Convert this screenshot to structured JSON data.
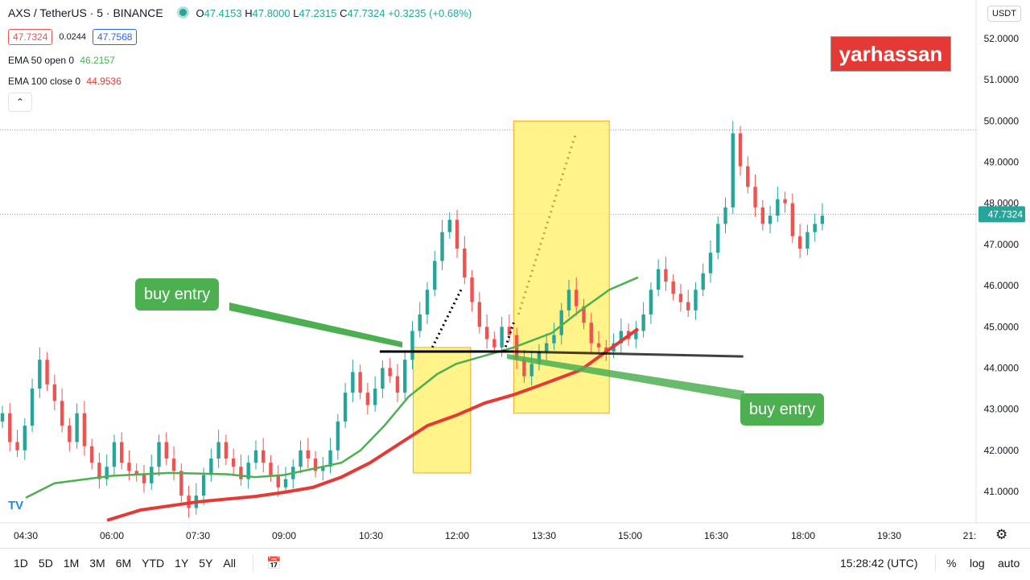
{
  "header": {
    "symbol": "AXS / TetherUS · 5 · BINANCE",
    "ohlc": {
      "o": "47.4153",
      "h": "47.8000",
      "l": "47.2315",
      "c": "47.7324",
      "chg": "+0.3235 (+0.68%)"
    },
    "bid": "47.7324",
    "spread": "0.0244",
    "ask": "47.7568",
    "ema50": {
      "label": "EMA 50 open 0",
      "value": "46.2157"
    },
    "ema100": {
      "label": "EMA 100 close 0",
      "value": "44.9536"
    },
    "collapse_icon": "chevron-up-icon"
  },
  "watermark": "yarhassan",
  "currency_button": "USDT",
  "notes": {
    "left": "buy entry",
    "right": "buy entry"
  },
  "colors": {
    "up": "#26a69a",
    "down": "#ef5350",
    "ema50": "#4caf50",
    "ema100": "#e53935",
    "box": "#fff176",
    "note": "#4caf50"
  },
  "chart_data": {
    "type": "candlestick",
    "title": "",
    "xlabel": "",
    "ylabel": "",
    "ylim": [
      40.5,
      52.4
    ],
    "price_ticks": [
      "52.0000",
      "51.0000",
      "50.0000",
      "49.0000",
      "48.0000",
      "47.0000",
      "46.0000",
      "45.0000",
      "44.0000",
      "43.0000",
      "42.0000",
      "41.0000"
    ],
    "time_ticks": [
      "04:30",
      "06:00",
      "07:30",
      "09:00",
      "10:30",
      "12:00",
      "13:30",
      "15:00",
      "16:30",
      "18:00",
      "19:30",
      "21:"
    ],
    "last_price": "47.7324",
    "candles_close": [
      42.9,
      42.2,
      42.0,
      42.6,
      43.5,
      44.2,
      43.6,
      43.2,
      42.6,
      42.2,
      42.9,
      42.1,
      41.7,
      41.3,
      41.6,
      42.2,
      41.7,
      41.5,
      41.4,
      41.2,
      41.6,
      42.2,
      41.8,
      41.5,
      40.9,
      40.6,
      40.9,
      41.4,
      41.8,
      42.2,
      41.8,
      41.6,
      41.3,
      41.7,
      42.0,
      41.7,
      41.4,
      41.1,
      41.3,
      41.6,
      42.0,
      41.8,
      41.5,
      41.6,
      42.0,
      42.7,
      43.4,
      43.9,
      43.4,
      43.1,
      43.5,
      44.0,
      43.8,
      43.4,
      44.2,
      44.9,
      45.3,
      45.9,
      46.6,
      47.3,
      47.6,
      46.9,
      46.2,
      45.6,
      45.0,
      44.7,
      44.5,
      45.0,
      44.8,
      44.2,
      43.8,
      44.1,
      44.4,
      44.6,
      44.8,
      45.4,
      45.9,
      45.5,
      45.1,
      44.6,
      44.5,
      44.4,
      44.6,
      44.9,
      44.7,
      44.9,
      45.3,
      45.9,
      46.4,
      46.1,
      45.8,
      45.6,
      45.4,
      45.9,
      46.3,
      46.8,
      47.5,
      47.9,
      49.7,
      48.9,
      48.4,
      47.9,
      47.5,
      47.7,
      48.1,
      48.0,
      47.2,
      46.9,
      47.3,
      47.5,
      47.7
    ],
    "ema50": [
      40.85,
      41.2,
      41.38,
      41.45,
      41.42,
      41.35,
      41.4,
      41.55,
      41.7,
      42.0,
      42.6,
      43.3,
      43.85,
      44.1,
      44.3,
      44.5,
      44.85,
      45.4,
      45.9,
      46.2
    ],
    "ema100": [
      40.3,
      40.55,
      40.75,
      40.88,
      40.98,
      41.1,
      41.35,
      41.7,
      42.15,
      42.6,
      42.85,
      43.15,
      43.35,
      43.6,
      43.95,
      44.45,
      44.95
    ],
    "ema50_x": [
      "04:30",
      "05:00",
      "06:00",
      "07:00",
      "08:00",
      "08:30",
      "09:00",
      "09:30",
      "10:00",
      "10:20",
      "10:45",
      "11:10",
      "11:40",
      "12:00",
      "12:30",
      "13:00",
      "13:40",
      "14:10",
      "14:40",
      "15:10"
    ],
    "ema100_x": [
      "05:55",
      "06:30",
      "07:30",
      "08:30",
      "09:00",
      "09:30",
      "10:00",
      "10:30",
      "11:00",
      "11:30",
      "12:00",
      "12:30",
      "13:00",
      "13:30",
      "14:10",
      "14:40",
      "15:10"
    ],
    "annotations": {
      "horizontal_line": 44.4,
      "box1": {
        "x": [
          "11:15",
          "12:15"
        ],
        "y": [
          41.45,
          44.5
        ]
      },
      "box2": {
        "x": [
          "13:00",
          "14:40"
        ],
        "y": [
          42.9,
          50.0
        ]
      }
    }
  },
  "bottom": {
    "ranges": [
      "1D",
      "5D",
      "1M",
      "3M",
      "6M",
      "YTD",
      "1Y",
      "5Y",
      "All"
    ],
    "calendar_icon": "calendar-icon",
    "clock": "15:28:42 (UTC)",
    "percent": "%",
    "log": "log",
    "auto": "auto",
    "settings_icon": "gear-icon"
  }
}
